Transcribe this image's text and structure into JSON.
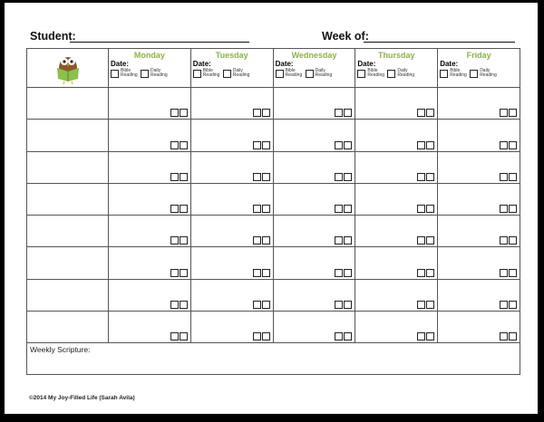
{
  "header": {
    "student_label": "Student:",
    "week_label": "Week of:"
  },
  "days": [
    "Monday",
    "Tuesday",
    "Wednesday",
    "Thursday",
    "Friday"
  ],
  "date_label": "Date:",
  "bible_label": "Bible Reading",
  "daily_label": "Daily Reading",
  "row_count": 8,
  "scripture_label": "Weekly Scripture:",
  "footer": "©2014 My Joy-Filled Life (Sarah Avila)",
  "colors": {
    "day_heading": "#8cb34a"
  },
  "logo": "owl-reading-book"
}
